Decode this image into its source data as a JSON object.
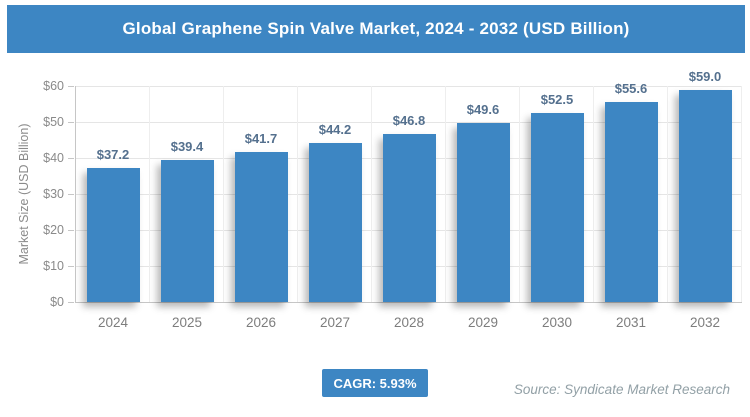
{
  "title": "Global Graphene Spin Valve Market, 2024 - 2032 (USD Billion)",
  "colors": {
    "accent": "#3d86c3",
    "bar": "#3d86c3",
    "value_label": "#54708e",
    "axis_text": "#8a8a8a",
    "grid": "#e5e5e5",
    "source_text": "#92a0a6"
  },
  "chart_data": {
    "type": "bar",
    "title": "Global Graphene Spin Valve Market, 2024 - 2032 (USD Billion)",
    "categories": [
      "2024",
      "2025",
      "2026",
      "2027",
      "2028",
      "2029",
      "2030",
      "2031",
      "2032"
    ],
    "values": [
      37.2,
      39.4,
      41.7,
      44.2,
      46.8,
      49.6,
      52.5,
      55.6,
      59.0
    ],
    "value_labels": [
      "$37.2",
      "$39.4",
      "$41.7",
      "$44.2",
      "$46.8",
      "$49.6",
      "$52.5",
      "$55.6",
      "$59.0"
    ],
    "xlabel": "",
    "ylabel": "Market Size (USD Billion)",
    "ylim": [
      0,
      60
    ],
    "ytick_step": 10,
    "ytick_labels": [
      "$0",
      "$10",
      "$20",
      "$30",
      "$40",
      "$50",
      "$60"
    ],
    "grid": true,
    "legend": false
  },
  "footer": {
    "cagr_label": "CAGR: 5.93%",
    "source": "Source: Syndicate Market Research"
  }
}
